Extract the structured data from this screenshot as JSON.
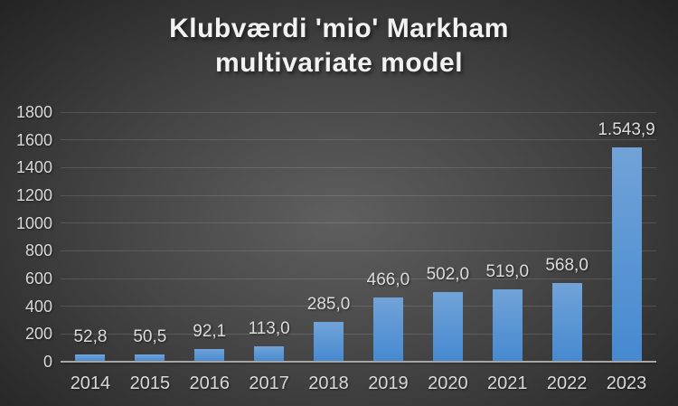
{
  "title": {
    "line1": "Klubværdi 'mio' Markham",
    "line2": "multivariate model"
  },
  "chart_data": {
    "type": "bar",
    "title": "Klubværdi 'mio' Markham multivariate model",
    "categories": [
      "2014",
      "2015",
      "2016",
      "2017",
      "2018",
      "2019",
      "2020",
      "2021",
      "2022",
      "2023"
    ],
    "values": [
      52.8,
      50.5,
      92.1,
      113.0,
      285.0,
      466.0,
      502.0,
      519.0,
      568.0,
      1543.9
    ],
    "data_labels": [
      "52,8",
      "50,5",
      "92,1",
      "113,0",
      "285,0",
      "466,0",
      "502,0",
      "519,0",
      "568,0",
      "1.543,9"
    ],
    "y_ticks": [
      0,
      200,
      400,
      600,
      800,
      1000,
      1200,
      1400,
      1600,
      1800
    ],
    "ylim": [
      0,
      1800
    ],
    "xlabel": "",
    "ylabel": "",
    "grid": true,
    "legend": false,
    "colors": {
      "bar_top": "#71a3d8",
      "bar_bottom": "#4689d0",
      "grid_line": "rgba(255,255,255,0.13)",
      "axis_line": "#a6a6a6",
      "label_text": "#d9d9d9",
      "title_text": "#f2f2f2",
      "background_center": "#5f5f5f",
      "background_edge": "#232323"
    }
  }
}
